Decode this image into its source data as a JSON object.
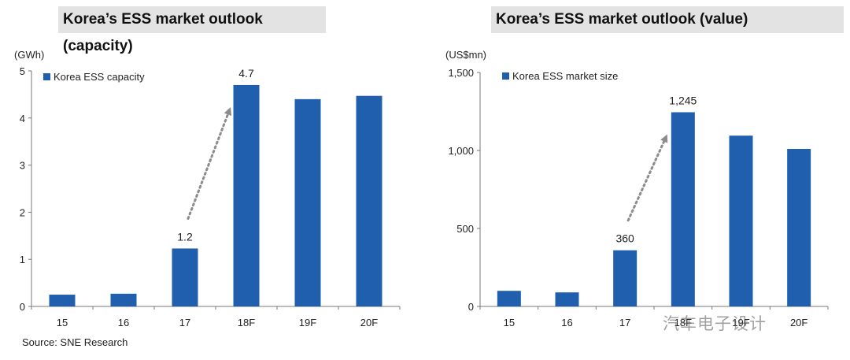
{
  "chart_data": [
    {
      "type": "bar",
      "title": "Korea’s ESS market outlook (capacity)",
      "unit": "(GWh)",
      "categories": [
        "15",
        "16",
        "17",
        "18F",
        "19F",
        "20F"
      ],
      "series": [
        {
          "name": "Korea ESS capacity",
          "values": [
            0.25,
            0.27,
            1.23,
            4.7,
            4.4,
            4.47
          ],
          "color": "#1f5fad"
        }
      ],
      "data_labels": [
        {
          "index": 2,
          "text": "1.2"
        },
        {
          "index": 3,
          "text": "4.7"
        }
      ],
      "yticks": [
        "0",
        "1",
        "2",
        "3",
        "4",
        "5"
      ],
      "ytick_values": [
        0,
        1,
        2,
        3,
        4,
        5
      ],
      "ylim": [
        0,
        5
      ],
      "grid": false,
      "legend_position": "top-left",
      "annotation": "dotted arrow from 17 to 18F"
    },
    {
      "type": "bar",
      "title": "Korea’s ESS market outlook (value)",
      "unit": "(US$mn)",
      "categories": [
        "15",
        "16",
        "17",
        "18F",
        "19F",
        "20F"
      ],
      "series": [
        {
          "name": "Korea ESS market size",
          "values": [
            100,
            90,
            360,
            1245,
            1095,
            1010
          ],
          "color": "#1f5fad"
        }
      ],
      "data_labels": [
        {
          "index": 2,
          "text": "360"
        },
        {
          "index": 3,
          "text": "1,245"
        }
      ],
      "yticks": [
        "0",
        "500",
        "1,000",
        "1,500"
      ],
      "ytick_values": [
        0,
        500,
        1000,
        1500
      ],
      "ylim": [
        0,
        1500
      ],
      "grid": false,
      "legend_position": "top-left",
      "annotation": "dotted arrow from 17 to 18F"
    }
  ],
  "source": "Source: SNE Research",
  "watermark": "汽车电子设计"
}
